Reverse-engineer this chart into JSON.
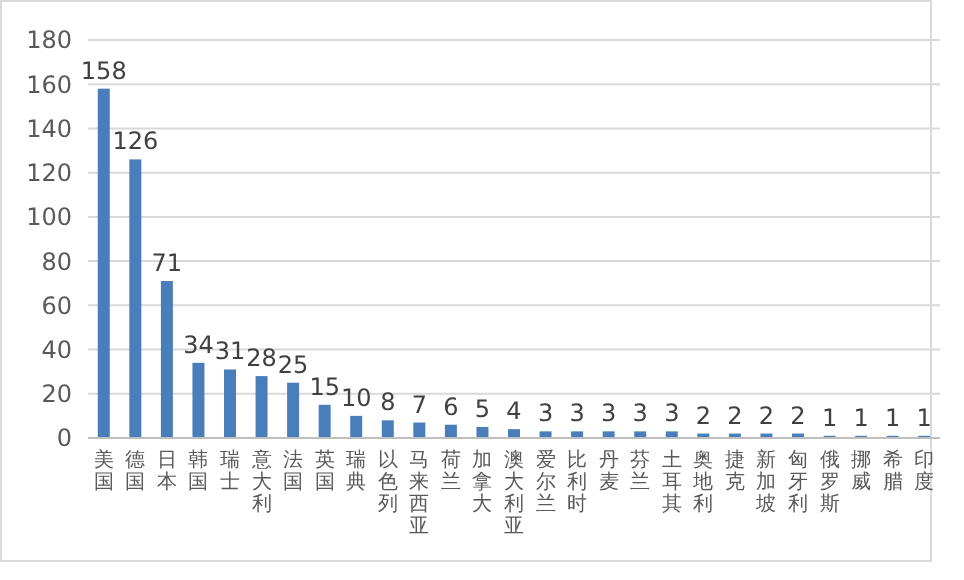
{
  "chart_data": {
    "type": "bar",
    "categories": [
      "美国",
      "德国",
      "日本",
      "韩国",
      "瑞士",
      "意大利",
      "法国",
      "英国",
      "瑞典",
      "以色列",
      "马来西亚",
      "荷兰",
      "加拿大",
      "澳大利亚",
      "爱尔兰",
      "比利时",
      "丹麦",
      "芬兰",
      "土耳其",
      "奥地利",
      "捷克",
      "新加坡",
      "匈牙利",
      "俄罗斯",
      "挪威",
      "希腊",
      "印度"
    ],
    "values": [
      158,
      126,
      71,
      34,
      31,
      28,
      25,
      15,
      10,
      8,
      7,
      6,
      5,
      4,
      3,
      3,
      3,
      3,
      3,
      2,
      2,
      2,
      2,
      1,
      1,
      1,
      1
    ],
    "color": "#4a7ebb",
    "ylim": [
      0,
      180
    ],
    "yticks": [
      0,
      20,
      40,
      60,
      80,
      100,
      120,
      140,
      160,
      180
    ],
    "grid": "y",
    "data_labels": true
  }
}
